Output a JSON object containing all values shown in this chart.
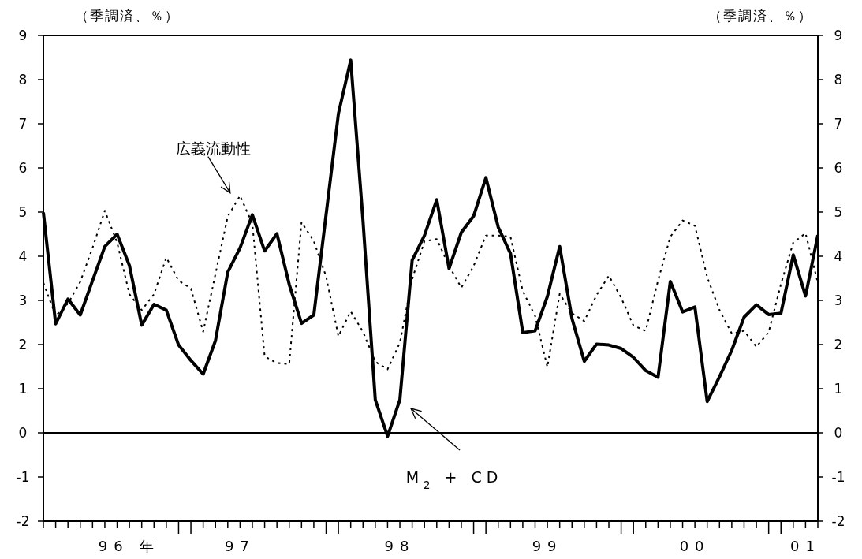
{
  "chart_data": {
    "type": "line",
    "ylabel": "（季調済、％）",
    "y2label": "（季調済、％）",
    "categories": [
      null,
      null,
      null,
      null,
      null,
      null,
      null,
      "96 年",
      null,
      null,
      null,
      null,
      null,
      null,
      null,
      null,
      "97",
      null,
      null,
      null,
      null,
      null,
      null,
      null,
      null,
      null,
      null,
      null,
      null,
      "98",
      null,
      null,
      null,
      null,
      null,
      null,
      null,
      null,
      null,
      null,
      null,
      "99",
      null,
      null,
      null,
      null,
      null,
      null,
      null,
      null,
      null,
      null,
      null,
      "00",
      null,
      null,
      null,
      null,
      null,
      null,
      null,
      null,
      "01",
      null
    ],
    "ylim": [
      -2,
      9
    ],
    "yticks": [
      -2,
      -1,
      0,
      1,
      2,
      3,
      4,
      5,
      6,
      7,
      8,
      9
    ],
    "y2lim": [
      -2,
      9
    ],
    "y2ticks": [
      -2,
      -1,
      0,
      1,
      2,
      3,
      4,
      5,
      6,
      7,
      8,
      9
    ],
    "ref_lines": [
      {
        "axis": "y",
        "value": 0
      }
    ],
    "grid": false,
    "series": [
      {
        "name": "M$_{2}$ + CD",
        "color": "#000000",
        "line_style": "solid",
        "values": [
          4.99,
          2.47,
          3.03,
          2.67,
          3.45,
          4.22,
          4.5,
          3.79,
          2.44,
          2.91,
          2.78,
          1.99,
          1.64,
          1.33,
          2.09,
          3.64,
          4.19,
          4.94,
          4.12,
          4.51,
          3.36,
          2.48,
          2.67,
          4.95,
          7.23,
          8.44,
          4.8,
          0.75,
          -0.08,
          0.75,
          3.91,
          4.47,
          5.28,
          3.72,
          4.54,
          4.91,
          5.78,
          4.66,
          4.06,
          2.27,
          2.31,
          3.09,
          4.22,
          2.59,
          1.62,
          2.01,
          1.99,
          1.91,
          1.71,
          1.41,
          1.26,
          3.43,
          2.74,
          2.85,
          0.71,
          1.27,
          1.87,
          2.62,
          2.9,
          2.68,
          2.71,
          4.03,
          3.1,
          4.48
        ]
      },
      {
        "name": "広義流動性",
        "color": "#000000",
        "line_style": "dotted",
        "values": [
          3.4,
          2.65,
          2.93,
          3.42,
          4.19,
          5.03,
          4.31,
          3.14,
          2.78,
          3.14,
          3.97,
          3.45,
          3.27,
          2.29,
          3.6,
          4.9,
          5.37,
          4.74,
          1.73,
          1.58,
          1.56,
          4.77,
          4.34,
          3.54,
          2.19,
          2.75,
          2.29,
          1.61,
          1.44,
          2.04,
          3.48,
          4.34,
          4.39,
          3.78,
          3.29,
          3.78,
          4.47,
          4.47,
          4.44,
          3.21,
          2.65,
          1.49,
          3.15,
          2.71,
          2.53,
          3.12,
          3.56,
          3.06,
          2.43,
          2.31,
          3.45,
          4.44,
          4.81,
          4.69,
          3.53,
          2.78,
          2.25,
          2.31,
          1.95,
          2.28,
          3.37,
          4.31,
          4.52,
          3.4
        ]
      }
    ]
  }
}
